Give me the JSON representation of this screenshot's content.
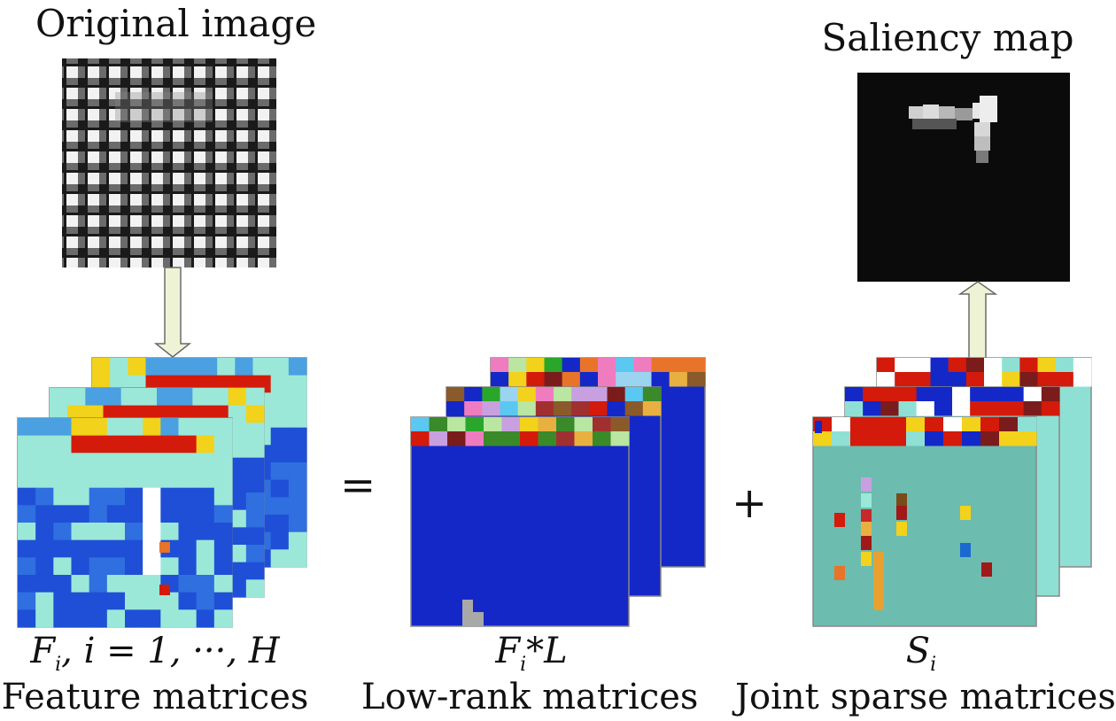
{
  "titles": {
    "original": "Original image",
    "saliency": "Saliency map"
  },
  "formulas": {
    "feature": {
      "F": "F",
      "sub": "i",
      "rest": ", i = 1, ···, H"
    },
    "lowrank": {
      "F": "F",
      "sub": "i",
      "rest": "*L"
    },
    "sparse": {
      "S": "S",
      "sub": "i"
    }
  },
  "captions": {
    "feature": "Feature matrices",
    "lowrank": "Low-rank matrices",
    "sparse": "Joint sparse matrices"
  },
  "operators": {
    "equals": "=",
    "plus": "+"
  },
  "colors": {
    "arrow_fill": "#eef3d6",
    "lowrank_blue": "#1428c8",
    "sparse_teal": "#6cbcb0",
    "feature_light": "#9be8d9",
    "feature_blue": "#1f4fd6",
    "red": "#d41a0a",
    "saliency_bg": "#0b0b0b"
  }
}
